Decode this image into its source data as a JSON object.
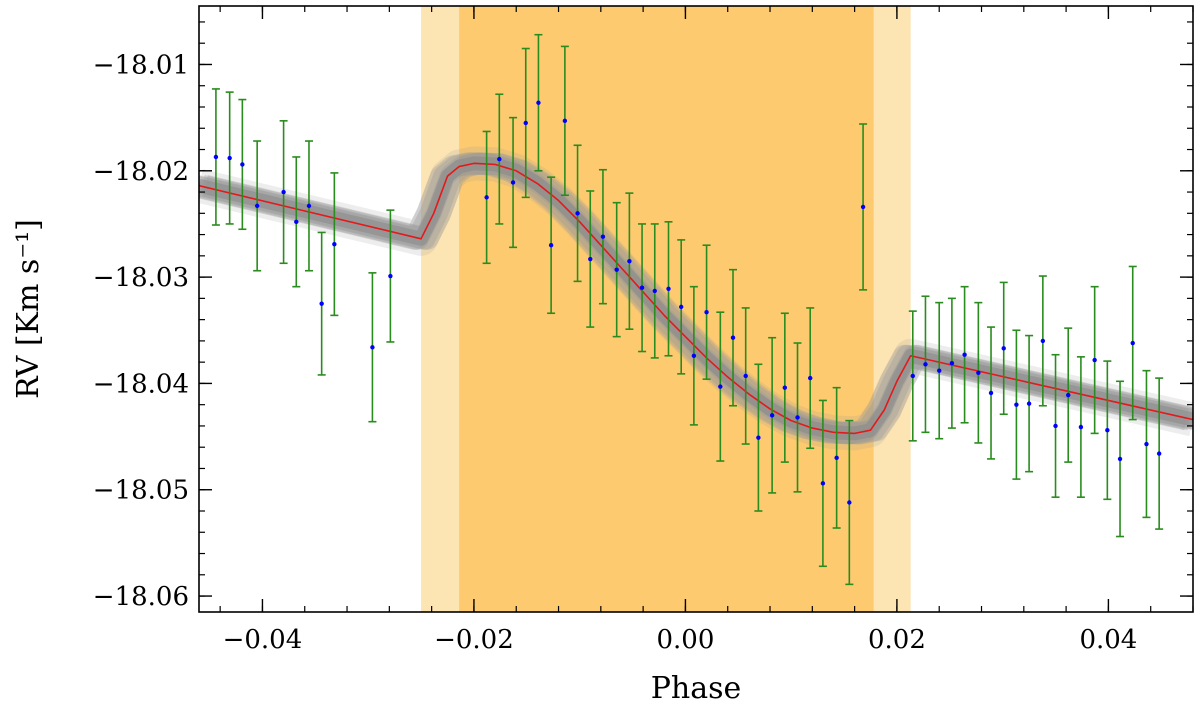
{
  "chart_data": {
    "type": "scatter",
    "xlabel": "Phase",
    "ylabel": "RV [Km s⁻¹]",
    "xlim": [
      -0.046,
      0.048
    ],
    "ylim": [
      -18.0615,
      -18.0045
    ],
    "x_ticks": [
      -0.04,
      -0.02,
      0.0,
      0.02,
      0.04
    ],
    "x_tick_labels": [
      "−0.04",
      "−0.02",
      "0.00",
      "0.02",
      "0.04"
    ],
    "y_ticks": [
      -18.01,
      -18.02,
      -18.03,
      -18.04,
      -18.05,
      -18.06
    ],
    "y_tick_labels": [
      "−18.01",
      "−18.02",
      "−18.03",
      "−18.04",
      "−18.05",
      "−18.06"
    ],
    "grid": false,
    "shaded_regions": [
      {
        "x0": -0.025,
        "x1": 0.0213,
        "color": "#fde4b3"
      },
      {
        "x0": -0.0214,
        "x1": 0.0178,
        "color": "#fdca70"
      }
    ],
    "model": {
      "color": "#e31a1c",
      "band_color": "#999999",
      "x": [
        -0.046,
        -0.025,
        -0.0238,
        -0.0225,
        -0.0214,
        -0.02,
        -0.018,
        -0.016,
        -0.014,
        -0.012,
        -0.01,
        -0.008,
        -0.006,
        -0.004,
        -0.002,
        0.0,
        0.002,
        0.004,
        0.006,
        0.008,
        0.01,
        0.012,
        0.014,
        0.016,
        0.0175,
        0.0188,
        0.02,
        0.0213,
        0.048
      ],
      "y": [
        -18.0214,
        -18.0264,
        -18.024,
        -18.0205,
        -18.0196,
        -18.0193,
        -18.0194,
        -18.02,
        -18.0212,
        -18.0228,
        -18.0248,
        -18.027,
        -18.0292,
        -18.0314,
        -18.0336,
        -18.0356,
        -18.0376,
        -18.0394,
        -18.041,
        -18.0424,
        -18.0435,
        -18.0442,
        -18.0446,
        -18.0447,
        -18.0444,
        -18.0425,
        -18.0398,
        -18.0374,
        -18.0434
      ]
    },
    "series": [
      {
        "marker_color": "#0000ff",
        "errorbar_color": "#2a8c1e",
        "points": [
          {
            "x": -0.0444,
            "y": -18.0187,
            "e": 0.0064
          },
          {
            "x": -0.0431,
            "y": -18.0188,
            "e": 0.0062
          },
          {
            "x": -0.0419,
            "y": -18.0194,
            "e": 0.0061
          },
          {
            "x": -0.0405,
            "y": -18.0233,
            "e": 0.0061
          },
          {
            "x": -0.038,
            "y": -18.022,
            "e": 0.0067
          },
          {
            "x": -0.0368,
            "y": -18.0248,
            "e": 0.0061
          },
          {
            "x": -0.0356,
            "y": -18.0233,
            "e": 0.0061
          },
          {
            "x": -0.0344,
            "y": -18.0325,
            "e": 0.0067
          },
          {
            "x": -0.0332,
            "y": -18.0269,
            "e": 0.0067
          },
          {
            "x": -0.0296,
            "y": -18.0366,
            "e": 0.007
          },
          {
            "x": -0.0279,
            "y": -18.0299,
            "e": 0.0062
          },
          {
            "x": -0.0188,
            "y": -18.0225,
            "e": 0.0062
          },
          {
            "x": -0.0176,
            "y": -18.0189,
            "e": 0.0061
          },
          {
            "x": -0.0163,
            "y": -18.0211,
            "e": 0.0061
          },
          {
            "x": -0.0151,
            "y": -18.0155,
            "e": 0.007
          },
          {
            "x": -0.0139,
            "y": -18.0136,
            "e": 0.0064
          },
          {
            "x": -0.0127,
            "y": -18.027,
            "e": 0.0064
          },
          {
            "x": -0.0114,
            "y": -18.0153,
            "e": 0.007
          },
          {
            "x": -0.0102,
            "y": -18.024,
            "e": 0.0064
          },
          {
            "x": -0.009,
            "y": -18.0283,
            "e": 0.0064
          },
          {
            "x": -0.0078,
            "y": -18.0262,
            "e": 0.0063
          },
          {
            "x": -0.0065,
            "y": -18.0293,
            "e": 0.0063
          },
          {
            "x": -0.0053,
            "y": -18.0285,
            "e": 0.0064
          },
          {
            "x": -0.0041,
            "y": -18.031,
            "e": 0.006
          },
          {
            "x": -0.0029,
            "y": -18.0313,
            "e": 0.0063
          },
          {
            "x": -0.0016,
            "y": -18.0311,
            "e": 0.0063
          },
          {
            "x": -0.0004,
            "y": -18.0328,
            "e": 0.0063
          },
          {
            "x": 0.0008,
            "y": -18.0374,
            "e": 0.0065
          },
          {
            "x": 0.002,
            "y": -18.0333,
            "e": 0.0063
          },
          {
            "x": 0.0033,
            "y": -18.0403,
            "e": 0.007
          },
          {
            "x": 0.0045,
            "y": -18.0357,
            "e": 0.0064
          },
          {
            "x": 0.0057,
            "y": -18.0393,
            "e": 0.0064
          },
          {
            "x": 0.0069,
            "y": -18.0451,
            "e": 0.0069
          },
          {
            "x": 0.0082,
            "y": -18.043,
            "e": 0.0073
          },
          {
            "x": 0.0094,
            "y": -18.0404,
            "e": 0.007
          },
          {
            "x": 0.0106,
            "y": -18.0432,
            "e": 0.007
          },
          {
            "x": 0.0118,
            "y": -18.0395,
            "e": 0.0066
          },
          {
            "x": 0.013,
            "y": -18.0494,
            "e": 0.0078
          },
          {
            "x": 0.0143,
            "y": -18.047,
            "e": 0.0066
          },
          {
            "x": 0.0155,
            "y": -18.0512,
            "e": 0.0077
          },
          {
            "x": 0.0168,
            "y": -18.0234,
            "e": 0.0078
          },
          {
            "x": 0.0215,
            "y": -18.0393,
            "e": 0.0061
          },
          {
            "x": 0.0227,
            "y": -18.0382,
            "e": 0.0064
          },
          {
            "x": 0.024,
            "y": -18.0388,
            "e": 0.0064
          },
          {
            "x": 0.0252,
            "y": -18.0381,
            "e": 0.0061
          },
          {
            "x": 0.0264,
            "y": -18.0373,
            "e": 0.0064
          },
          {
            "x": 0.0277,
            "y": -18.039,
            "e": 0.0066
          },
          {
            "x": 0.0289,
            "y": -18.0409,
            "e": 0.0062
          },
          {
            "x": 0.0301,
            "y": -18.0367,
            "e": 0.0062
          },
          {
            "x": 0.0313,
            "y": -18.042,
            "e": 0.007
          },
          {
            "x": 0.0325,
            "y": -18.0419,
            "e": 0.0064
          },
          {
            "x": 0.0338,
            "y": -18.036,
            "e": 0.0061
          },
          {
            "x": 0.035,
            "y": -18.044,
            "e": 0.0067
          },
          {
            "x": 0.0362,
            "y": -18.0411,
            "e": 0.0063
          },
          {
            "x": 0.0374,
            "y": -18.0441,
            "e": 0.0066
          },
          {
            "x": 0.0387,
            "y": -18.0378,
            "e": 0.0069
          },
          {
            "x": 0.0399,
            "y": -18.0444,
            "e": 0.0065
          },
          {
            "x": 0.0411,
            "y": -18.0471,
            "e": 0.0073
          },
          {
            "x": 0.0423,
            "y": -18.0362,
            "e": 0.0072
          },
          {
            "x": 0.0436,
            "y": -18.0457,
            "e": 0.0069
          },
          {
            "x": 0.0448,
            "y": -18.0466,
            "e": 0.0071
          }
        ]
      }
    ]
  }
}
